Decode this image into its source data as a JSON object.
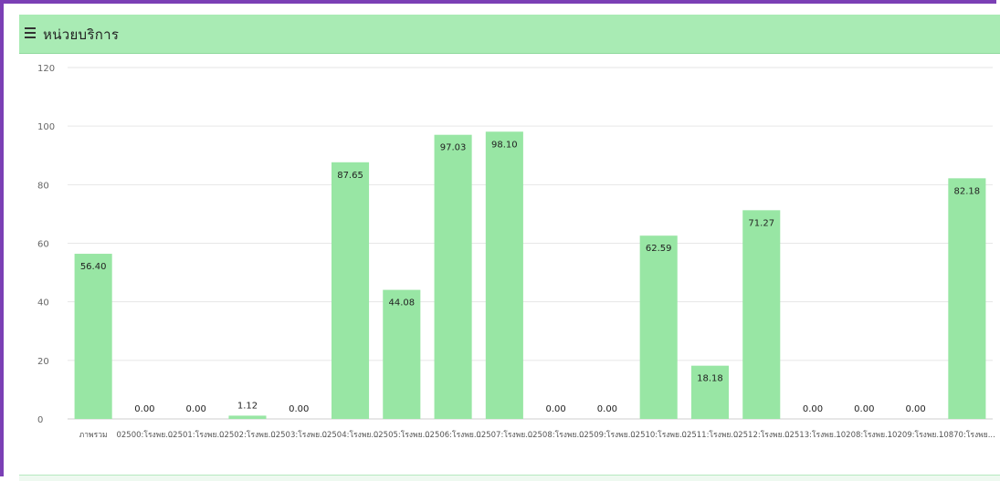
{
  "panel": {
    "title": "หน่วยบริการ",
    "icon": "hamburger-menu-icon"
  },
  "colors": {
    "frame": "#7b3fb5",
    "header_bg": "#a9ebb4",
    "bar": "#98e6a4",
    "grid": "#e6e6e6"
  },
  "chart_data": {
    "type": "bar",
    "categories": [
      "ภาพรวม",
      "02500:โรงพย...",
      "02501:โรงพย...",
      "02502:โรงพย...",
      "02503:โรงพย...",
      "02504:โรงพย...",
      "02505:โรงพย...",
      "02506:โรงพย...",
      "02507:โรงพย...",
      "02508:โรงพย...",
      "02509:โรงพย...",
      "02510:โรงพย...",
      "02511:โรงพย...",
      "02512:โรงพย...",
      "02513:โรงพย...",
      "10208:โรงพย...",
      "10209:โรงพย...",
      "10870:โรงพย..."
    ],
    "values": [
      56.4,
      0.0,
      0.0,
      1.12,
      0.0,
      87.65,
      44.08,
      97.03,
      98.1,
      0.0,
      0.0,
      62.59,
      18.18,
      71.27,
      0.0,
      0.0,
      0.0,
      82.18
    ],
    "value_labels": [
      "56.40",
      "0.00",
      "0.00",
      "1.12",
      "0.00",
      "87.65",
      "44.08",
      "97.03",
      "98.10",
      "0.00",
      "0.00",
      "62.59",
      "18.18",
      "71.27",
      "0.00",
      "0.00",
      "0.00",
      "82.18"
    ],
    "yticks": [
      0,
      20,
      40,
      60,
      80,
      100,
      120
    ],
    "ylim": [
      0,
      120
    ],
    "grid": true,
    "legend": "none"
  }
}
